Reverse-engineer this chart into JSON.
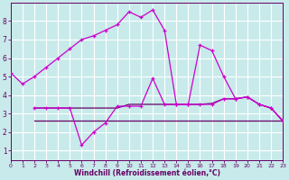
{
  "bg_color": "#c8eaea",
  "grid_color": "#ffffff",
  "line_color_bright": "#cc00cc",
  "line_color_dark": "#660066",
  "xlabel": "Windchill (Refroidissement éolien,°C)",
  "xlim": [
    0,
    23
  ],
  "ylim": [
    0.5,
    9.0
  ],
  "xticks": [
    0,
    1,
    2,
    3,
    4,
    5,
    6,
    7,
    8,
    9,
    10,
    11,
    12,
    13,
    14,
    15,
    16,
    17,
    18,
    19,
    20,
    21,
    22,
    23
  ],
  "yticks": [
    1,
    2,
    3,
    4,
    5,
    6,
    7,
    8
  ],
  "s1_x": [
    0,
    1,
    2,
    3,
    4,
    5,
    6,
    7,
    8,
    9,
    10,
    11,
    12,
    13,
    14,
    15,
    16,
    17,
    18,
    19,
    20,
    21,
    22,
    23
  ],
  "s1_y": [
    5.2,
    4.6,
    5.0,
    5.5,
    6.0,
    6.5,
    7.0,
    7.2,
    7.5,
    7.8,
    8.5,
    8.2,
    8.6,
    7.5,
    3.5,
    3.5,
    6.7,
    6.4,
    5.0,
    3.8,
    3.9,
    3.5,
    3.3,
    2.6
  ],
  "s2_x": [
    2,
    3,
    4,
    5,
    6,
    7,
    8,
    9,
    10,
    11,
    12,
    13,
    14,
    15,
    16,
    17,
    18,
    19,
    20,
    21,
    22,
    23
  ],
  "s2_y": [
    3.3,
    3.3,
    3.3,
    3.3,
    1.3,
    2.0,
    2.5,
    3.4,
    3.4,
    3.4,
    4.9,
    3.5,
    3.5,
    3.5,
    3.5,
    3.5,
    3.8,
    3.8,
    3.9,
    3.5,
    3.3,
    2.6
  ],
  "s3_x": [
    2,
    3,
    4,
    5,
    6,
    7,
    8,
    9,
    10,
    11,
    12,
    13,
    14,
    15,
    16,
    17,
    18,
    19,
    20,
    21,
    22,
    23
  ],
  "s3_y": [
    3.3,
    3.3,
    3.3,
    3.3,
    3.3,
    3.3,
    3.3,
    3.3,
    3.5,
    3.5,
    3.5,
    3.5,
    3.5,
    3.5,
    3.5,
    3.55,
    3.8,
    3.8,
    3.9,
    3.5,
    3.3,
    2.6
  ],
  "s4_x": [
    2,
    3,
    4,
    5,
    6,
    7,
    8,
    9,
    10,
    11,
    12,
    13,
    14,
    15,
    16,
    17,
    18,
    19,
    20,
    21,
    22,
    23
  ],
  "s4_y": [
    2.6,
    2.6,
    2.6,
    2.6,
    2.6,
    2.6,
    2.6,
    2.6,
    2.6,
    2.6,
    2.6,
    2.6,
    2.6,
    2.6,
    2.6,
    2.6,
    2.6,
    2.6,
    2.6,
    2.6,
    2.6,
    2.6
  ]
}
